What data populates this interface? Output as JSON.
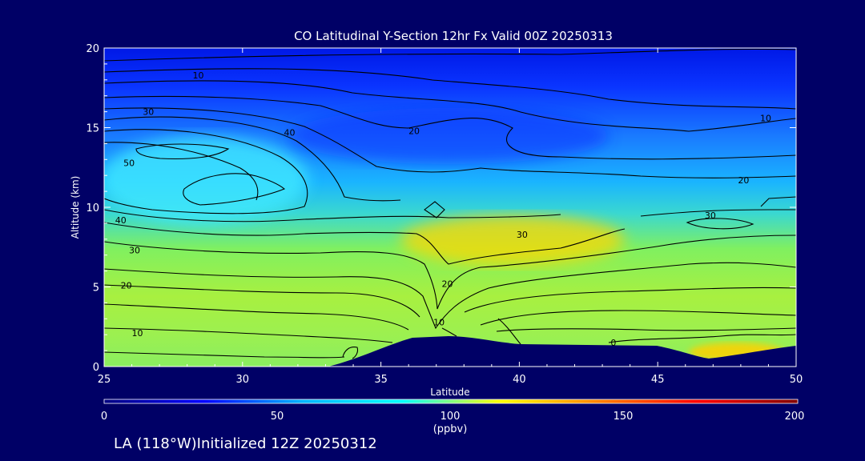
{
  "chart_data": {
    "type": "heatmap",
    "title": "CO Latitudinal Y-Section 12hr  Fx Valid 00Z 20250313",
    "xlabel": "Latitude",
    "ylabel": "Altitude (km)",
    "xlim": [
      25,
      50
    ],
    "ylim": [
      0,
      20
    ],
    "x_ticks": [
      "25",
      "30",
      "35",
      "40",
      "45",
      "50"
    ],
    "y_ticks": [
      "0",
      "5",
      "10",
      "15",
      "20"
    ],
    "colorbar": {
      "min": 0,
      "max": 200,
      "ticks": [
        "0",
        "50",
        "100",
        "150",
        "200"
      ],
      "unit": "(ppbv)",
      "stops": [
        "#000080",
        "#0000ff",
        "#00b4ff",
        "#00ffff",
        "#ffff00",
        "#ff8000",
        "#ff0000",
        "#800000"
      ]
    },
    "contour_labels": [
      {
        "text": "10",
        "lat": 28.4,
        "alt": 18.3
      },
      {
        "text": "30",
        "lat": 26.6,
        "alt": 16.0
      },
      {
        "text": "40",
        "lat": 31.7,
        "alt": 14.7
      },
      {
        "text": "50",
        "lat": 25.9,
        "alt": 12.8
      },
      {
        "text": "20",
        "lat": 36.2,
        "alt": 14.8
      },
      {
        "text": "10",
        "lat": 48.9,
        "alt": 15.6
      },
      {
        "text": "20",
        "lat": 48.1,
        "alt": 11.7
      },
      {
        "text": "30",
        "lat": 46.9,
        "alt": 9.5
      },
      {
        "text": "30",
        "lat": 40.1,
        "alt": 8.3
      },
      {
        "text": "40",
        "lat": 25.6,
        "alt": 9.2
      },
      {
        "text": "30",
        "lat": 26.1,
        "alt": 7.3
      },
      {
        "text": "20",
        "lat": 25.8,
        "alt": 5.1
      },
      {
        "text": "20",
        "lat": 37.4,
        "alt": 5.2
      },
      {
        "text": "10",
        "lat": 26.2,
        "alt": 2.1
      },
      {
        "text": "10",
        "lat": 37.1,
        "alt": 2.8
      },
      {
        "text": "0",
        "lat": 43.4,
        "alt": 1.5
      }
    ],
    "footer": "LA (118°W)Initialized 12Z 20250312"
  }
}
